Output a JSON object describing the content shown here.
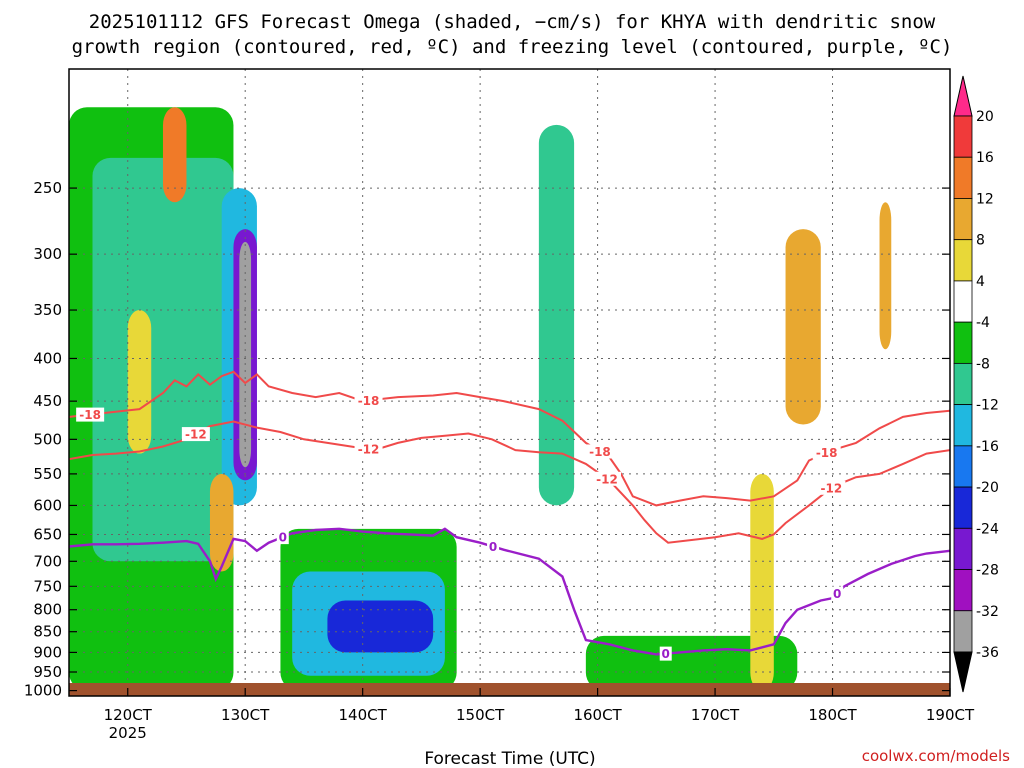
{
  "chart_data": {
    "type": "heatmap",
    "title_line1": "2025101112 GFS Forecast Omega (shaded, −cm/s) for KHYA with dendritic snow",
    "title_line2": "growth region (contoured, red, ºC) and freezing level (contoured, purple, ºC)",
    "xlabel": "Forecast Time (UTC)",
    "credit": "coolwx.com/models",
    "x_range": [
      115,
      190
    ],
    "y_range": [
      180,
      1015
    ],
    "y_scale": "log-pressure",
    "grid": true,
    "x_ticks": [
      {
        "value": 120,
        "label": "120CT",
        "sub": "2025"
      },
      {
        "value": 130,
        "label": "130CT",
        "sub": ""
      },
      {
        "value": 140,
        "label": "140CT",
        "sub": ""
      },
      {
        "value": 150,
        "label": "150CT",
        "sub": ""
      },
      {
        "value": 160,
        "label": "160CT",
        "sub": ""
      },
      {
        "value": 170,
        "label": "170CT",
        "sub": ""
      },
      {
        "value": 180,
        "label": "180CT",
        "sub": ""
      },
      {
        "value": 190,
        "label": "190CT",
        "sub": ""
      }
    ],
    "y_ticks": [
      250,
      300,
      350,
      400,
      450,
      500,
      550,
      600,
      650,
      700,
      750,
      800,
      850,
      900,
      950,
      1000
    ],
    "colorbar": {
      "labels": [
        "20",
        "16",
        "12",
        "8",
        "4",
        "-4",
        "-8",
        "-12",
        "-16",
        "-20",
        "-24",
        "-28",
        "-32",
        "-36"
      ],
      "colors": [
        "#ff2a8a",
        "#f03a3a",
        "#f07a28",
        "#e8a830",
        "#e8d838",
        "#ffffff",
        "#10c010",
        "#30c890",
        "#20b8e0",
        "#1878f0",
        "#1828d8",
        "#7818d0",
        "#a010c0",
        "#a0a0a0",
        "#000000"
      ]
    },
    "contours": [
      {
        "name": "-18",
        "color": "#f04a4a",
        "kind": "snow-growth",
        "labels": [
          {
            "text": "-18",
            "x": 116.8
          },
          {
            "text": "-18",
            "x": 140.5
          },
          {
            "text": "-18",
            "x": 160.2
          },
          {
            "text": "-18",
            "x": 179.5
          }
        ],
        "points": [
          [
            115,
            470
          ],
          [
            118,
            465
          ],
          [
            121,
            460
          ],
          [
            123,
            440
          ],
          [
            124,
            425
          ],
          [
            125,
            432
          ],
          [
            126,
            418
          ],
          [
            127,
            430
          ],
          [
            128,
            420
          ],
          [
            129,
            415
          ],
          [
            130,
            428
          ],
          [
            131,
            418
          ],
          [
            132,
            432
          ],
          [
            134,
            440
          ],
          [
            136,
            445
          ],
          [
            138,
            440
          ],
          [
            140,
            450
          ],
          [
            143,
            445
          ],
          [
            146,
            443
          ],
          [
            148,
            440
          ],
          [
            150,
            445
          ],
          [
            152,
            450
          ],
          [
            155,
            460
          ],
          [
            157,
            475
          ],
          [
            159,
            505
          ],
          [
            161,
            525
          ],
          [
            162,
            550
          ],
          [
            163,
            585
          ],
          [
            165,
            600
          ],
          [
            167,
            592
          ],
          [
            169,
            585
          ],
          [
            171,
            588
          ],
          [
            173,
            592
          ],
          [
            175,
            585
          ],
          [
            177,
            560
          ],
          [
            178,
            530
          ],
          [
            180,
            515
          ],
          [
            182,
            505
          ],
          [
            184,
            485
          ],
          [
            186,
            470
          ],
          [
            188,
            465
          ],
          [
            190,
            462
          ]
        ]
      },
      {
        "name": "-12",
        "color": "#f04a4a",
        "kind": "snow-growth",
        "labels": [
          {
            "text": "-12",
            "x": 125.8
          },
          {
            "text": "-12",
            "x": 140.5
          },
          {
            "text": "-12",
            "x": 160.8
          },
          {
            "text": "-12",
            "x": 179.9
          }
        ],
        "points": [
          [
            115,
            528
          ],
          [
            117,
            522
          ],
          [
            119,
            520
          ],
          [
            121,
            517
          ],
          [
            123,
            510
          ],
          [
            125,
            500
          ],
          [
            127,
            482
          ],
          [
            129,
            476
          ],
          [
            131,
            484
          ],
          [
            133,
            490
          ],
          [
            135,
            500
          ],
          [
            137,
            505
          ],
          [
            139,
            510
          ],
          [
            141,
            515
          ],
          [
            143,
            505
          ],
          [
            145,
            498
          ],
          [
            147,
            495
          ],
          [
            149,
            492
          ],
          [
            151,
            500
          ],
          [
            153,
            515
          ],
          [
            155,
            518
          ],
          [
            157,
            520
          ],
          [
            159,
            535
          ],
          [
            161,
            560
          ],
          [
            163,
            600
          ],
          [
            164,
            625
          ],
          [
            165,
            648
          ],
          [
            166,
            665
          ],
          [
            168,
            660
          ],
          [
            170,
            655
          ],
          [
            172,
            648
          ],
          [
            174,
            658
          ],
          [
            175,
            650
          ],
          [
            176,
            630
          ],
          [
            178,
            600
          ],
          [
            180,
            570
          ],
          [
            182,
            555
          ],
          [
            184,
            550
          ],
          [
            186,
            535
          ],
          [
            188,
            520
          ],
          [
            190,
            515
          ]
        ]
      },
      {
        "name": "0",
        "color": "#9a1ec8",
        "kind": "freezing-level",
        "labels": [
          {
            "text": "0",
            "x": 133.2
          },
          {
            "text": "0",
            "x": 151.1
          },
          {
            "text": "0",
            "x": 165.8
          },
          {
            "text": "0",
            "x": 180.4
          }
        ],
        "points": [
          [
            115,
            672
          ],
          [
            117,
            668
          ],
          [
            119,
            668
          ],
          [
            121,
            667
          ],
          [
            123,
            665
          ],
          [
            125,
            662
          ],
          [
            126,
            667
          ],
          [
            127,
            700
          ],
          [
            127.5,
            735
          ],
          [
            128,
            710
          ],
          [
            129,
            658
          ],
          [
            130,
            662
          ],
          [
            131,
            680
          ],
          [
            132,
            665
          ],
          [
            134,
            648
          ],
          [
            136,
            642
          ],
          [
            138,
            640
          ],
          [
            140,
            645
          ],
          [
            142,
            648
          ],
          [
            144,
            650
          ],
          [
            146,
            652
          ],
          [
            147,
            640
          ],
          [
            148,
            655
          ],
          [
            150,
            665
          ],
          [
            152,
            678
          ],
          [
            155,
            695
          ],
          [
            157,
            730
          ],
          [
            158,
            800
          ],
          [
            159,
            870
          ],
          [
            161,
            880
          ],
          [
            163,
            895
          ],
          [
            165,
            905
          ],
          [
            167,
            900
          ],
          [
            169,
            895
          ],
          [
            171,
            892
          ],
          [
            173,
            895
          ],
          [
            175,
            880
          ],
          [
            176,
            830
          ],
          [
            177,
            800
          ],
          [
            179,
            780
          ],
          [
            180,
            775
          ],
          [
            181,
            750
          ],
          [
            183,
            725
          ],
          [
            185,
            705
          ],
          [
            187,
            690
          ],
          [
            188,
            685
          ],
          [
            190,
            680
          ]
        ]
      }
    ],
    "shading": [
      {
        "x": [
          115,
          129
        ],
        "p": [
          200,
          1000
        ],
        "value": -8
      },
      {
        "x": [
          117,
          129
        ],
        "p": [
          230,
          700
        ],
        "value": -12
      },
      {
        "x": [
          128,
          131
        ],
        "p": [
          250,
          600
        ],
        "value": -16
      },
      {
        "x": [
          129,
          131
        ],
        "p": [
          280,
          560
        ],
        "value": -28
      },
      {
        "x": [
          129.5,
          130.5
        ],
        "p": [
          290,
          540
        ],
        "value": -36
      },
      {
        "x": [
          133,
          148
        ],
        "p": [
          640,
          1000
        ],
        "value": -8
      },
      {
        "x": [
          134,
          147
        ],
        "p": [
          720,
          960
        ],
        "value": -16
      },
      {
        "x": [
          137,
          146
        ],
        "p": [
          780,
          900
        ],
        "value": -24
      },
      {
        "x": [
          155,
          158
        ],
        "p": [
          210,
          600
        ],
        "value": -12
      },
      {
        "x": [
          159,
          177
        ],
        "p": [
          860,
          1000
        ],
        "value": -8
      },
      {
        "x": [
          120,
          122
        ],
        "p": [
          350,
          520
        ],
        "value": 4
      },
      {
        "x": [
          127,
          129
        ],
        "p": [
          550,
          720
        ],
        "value": 8
      },
      {
        "x": [
          173,
          175
        ],
        "p": [
          550,
          1000
        ],
        "value": 4
      },
      {
        "x": [
          176,
          179
        ],
        "p": [
          280,
          480
        ],
        "value": 8
      },
      {
        "x": [
          184,
          185
        ],
        "p": [
          260,
          390
        ],
        "value": 8
      },
      {
        "x": [
          123,
          125
        ],
        "p": [
          200,
          260
        ],
        "value": 12
      }
    ]
  }
}
